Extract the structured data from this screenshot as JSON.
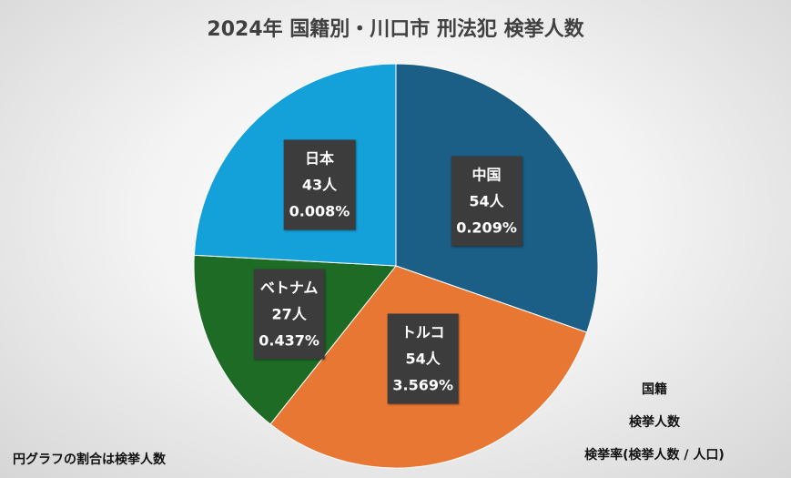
{
  "chart_data": {
    "type": "pie",
    "title": "2024年 国籍別・川口市 刑法犯 検挙人数",
    "categories": [
      "中国",
      "トルコ",
      "ベトナム",
      "日本"
    ],
    "values": [
      54,
      54,
      27,
      43
    ],
    "value_labels": [
      "54人",
      "54人",
      "27人",
      "43人"
    ],
    "rate_labels": [
      "0.209%",
      "3.569%",
      "0.437%",
      "0.008%"
    ],
    "colors": [
      "#1b5e86",
      "#e87733",
      "#1d6b25",
      "#14a0d8"
    ],
    "start_angle_deg": 0,
    "direction": "clockwise"
  },
  "footnote": "円グラフの割合は検挙人数",
  "legend_key": [
    "国籍",
    "検挙人数",
    "検挙率(検挙人数 / 人口)"
  ]
}
